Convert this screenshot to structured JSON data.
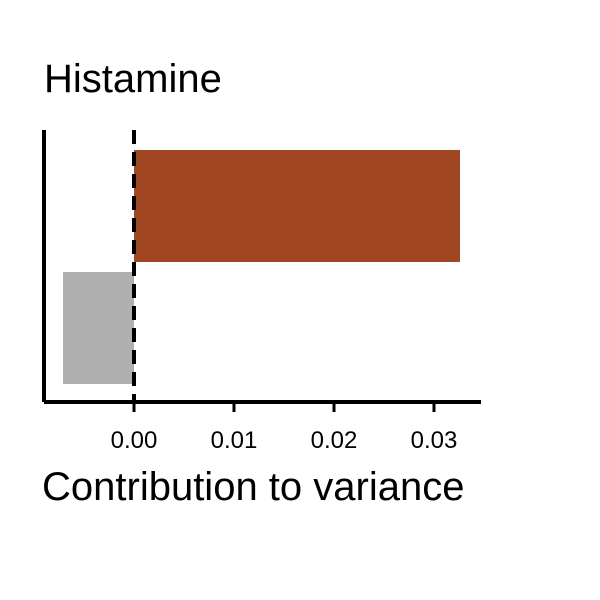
{
  "chart_data": {
    "type": "bar",
    "orientation": "horizontal",
    "title": "Histamine",
    "xlabel": "Contribution to variance",
    "ylabel": "",
    "xlim": [
      -0.009,
      0.035
    ],
    "xticks": [
      0.0,
      0.01,
      0.02,
      0.03
    ],
    "xtick_labels": [
      "0.00",
      "0.01",
      "0.02",
      "0.03"
    ],
    "zero_reference_line": "dashed",
    "grid": false,
    "legend": "none",
    "bars": [
      {
        "value": 0.0326,
        "color": "#a04622"
      },
      {
        "value": -0.0071,
        "color": "#b0b0b0"
      }
    ]
  }
}
